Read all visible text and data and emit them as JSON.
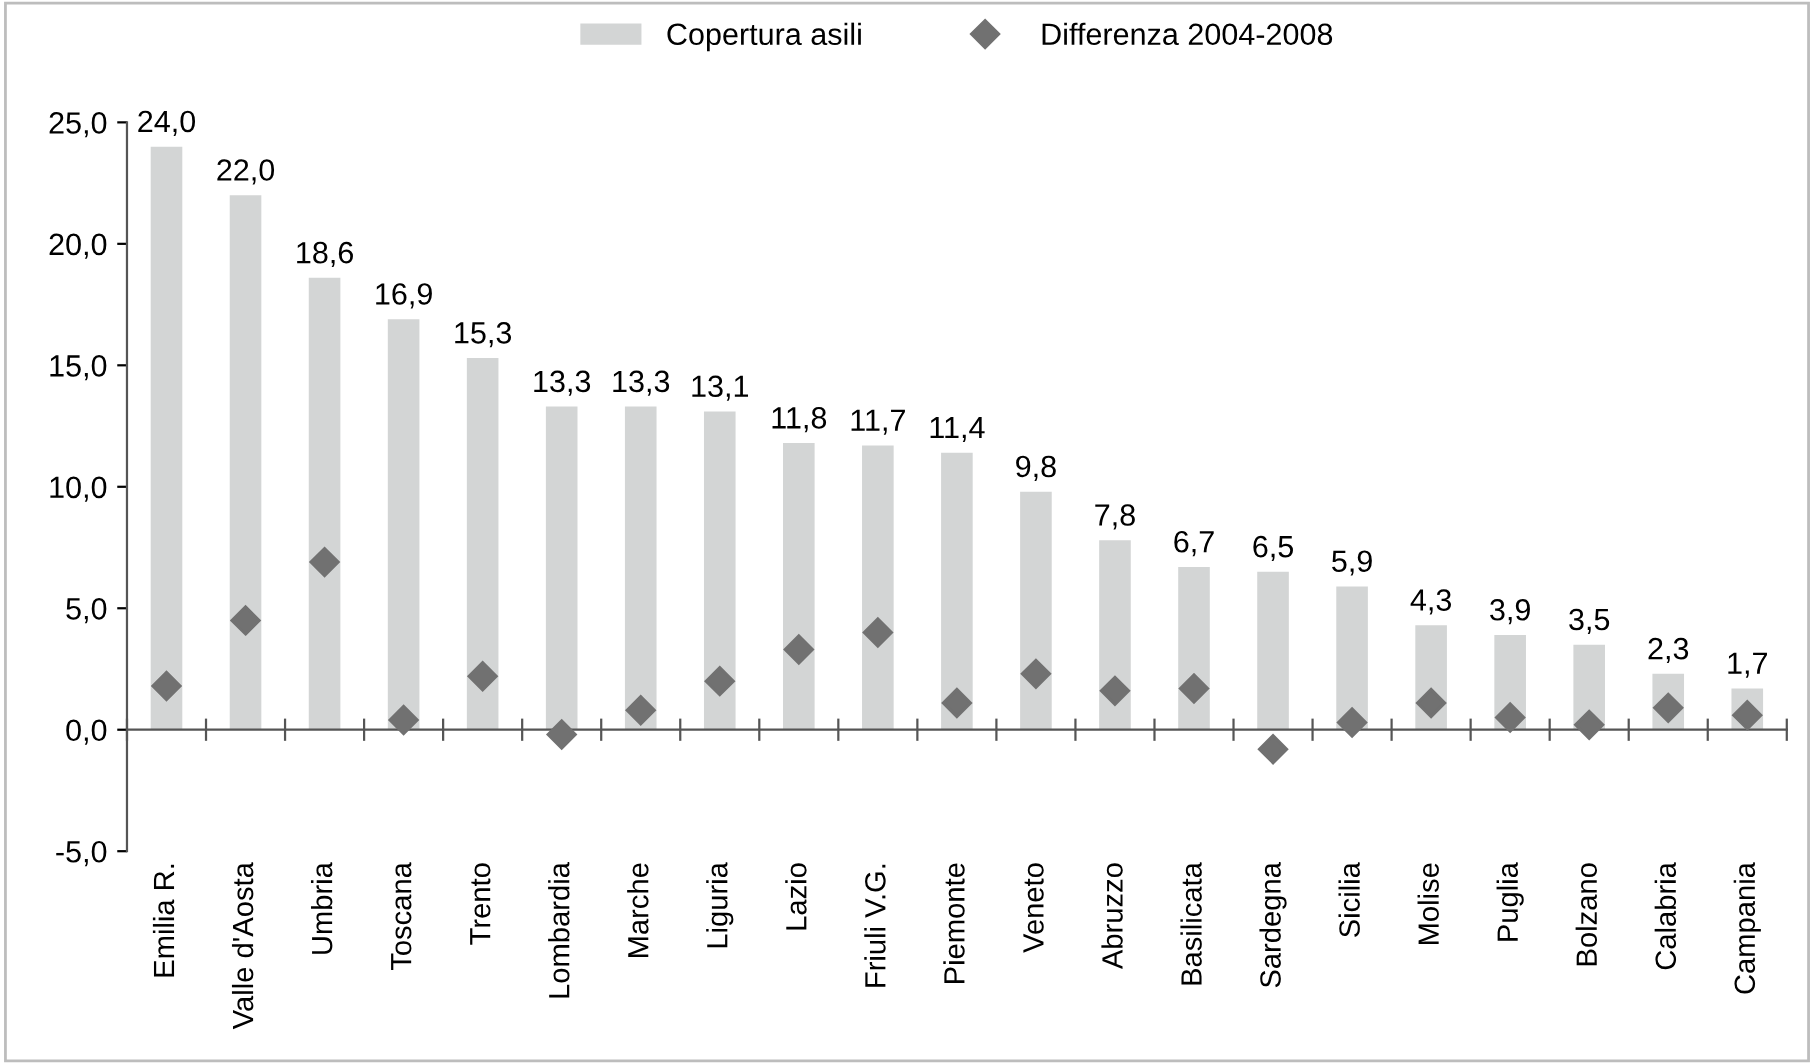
{
  "chart_data": {
    "type": "bar",
    "categories": [
      "Emilia R.",
      "Valle d'Aosta",
      "Umbria",
      "Toscana",
      "Trento",
      "Lombardia",
      "Marche",
      "Liguria",
      "Lazio",
      "Friuli V.G.",
      "Piemonte",
      "Veneto",
      "Abruzzo",
      "Basilicata",
      "Sardegna",
      "Sicilia",
      "Molise",
      "Puglia",
      "Bolzano",
      "Calabria",
      "Campania"
    ],
    "series": [
      {
        "name": "Copertura asili",
        "color": "#d3d5d5",
        "values": [
          24.0,
          22.0,
          18.6,
          16.9,
          15.3,
          13.3,
          13.3,
          13.1,
          11.8,
          11.7,
          11.4,
          9.8,
          7.8,
          6.7,
          6.5,
          5.9,
          4.3,
          3.9,
          3.5,
          2.3,
          1.7
        ],
        "value_labels": [
          "24,0",
          "22,0",
          "18,6",
          "16,9",
          "15,3",
          "13,3",
          "13,3",
          "13,1",
          "11,8",
          "11,7",
          "11,4",
          "9,8",
          "7,8",
          "6,7",
          "6,5",
          "5,9",
          "4,3",
          "3,9",
          "3,5",
          "2,3",
          "1,7"
        ]
      },
      {
        "name": "Differenza 2004-2008",
        "type": "scatter",
        "color": "#717171",
        "marker": "diamond",
        "values": [
          1.8,
          4.5,
          6.9,
          0.4,
          2.2,
          -0.2,
          0.8,
          2.0,
          3.3,
          4.0,
          1.1,
          2.3,
          1.6,
          1.7,
          -0.8,
          0.3,
          1.1,
          0.5,
          0.2,
          0.9,
          0.6
        ]
      }
    ],
    "ylim": [
      -5,
      25
    ],
    "yticks": [
      {
        "value": -5,
        "label": "-5,0"
      },
      {
        "value": 0,
        "label": "0,0"
      },
      {
        "value": 5,
        "label": "5,0"
      },
      {
        "value": 10,
        "label": "10,0"
      },
      {
        "value": 15,
        "label": "15,0"
      },
      {
        "value": 20,
        "label": "20,0"
      },
      {
        "value": 25,
        "label": "25,0"
      }
    ],
    "legend": "top"
  }
}
